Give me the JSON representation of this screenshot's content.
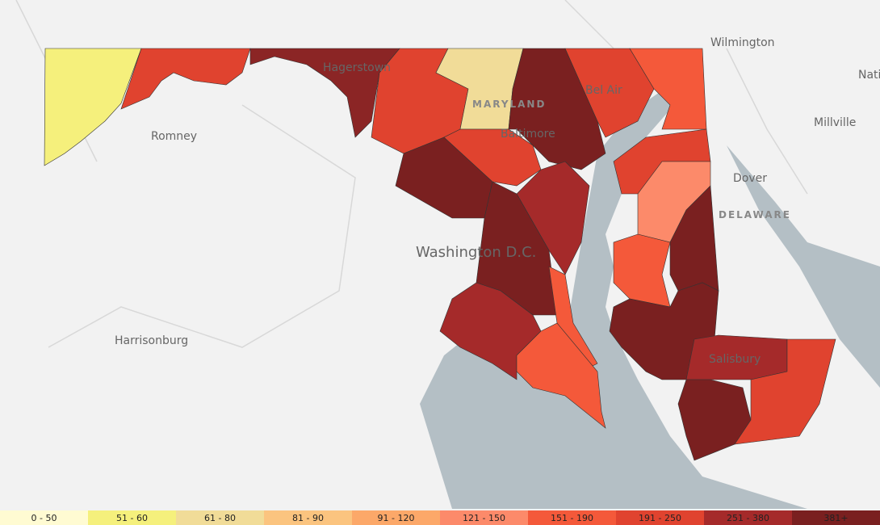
{
  "places": [
    "Wilmington",
    "Romney",
    "Hagerstown",
    "Bel Air",
    "MARYLAND",
    "Baltimore",
    "Millville",
    "Dover",
    "DELAWARE",
    "Washington D.C.",
    "Harrisonburg",
    "Salisbury",
    "Nati"
  ],
  "legend": [
    {
      "label": "0 - 50",
      "color": "#fffbd2"
    },
    {
      "label": "51 - 60",
      "color": "#f5f07c"
    },
    {
      "label": "61 - 80",
      "color": "#f1dc98"
    },
    {
      "label": "81 - 90",
      "color": "#fbc47f"
    },
    {
      "label": "91 - 120",
      "color": "#fca869"
    },
    {
      "label": "121 - 150",
      "color": "#fc8a6a"
    },
    {
      "label": "151 - 190",
      "color": "#f4593a"
    },
    {
      "label": "191 - 250",
      "color": "#e0432f"
    },
    {
      "label": "251 - 380",
      "color": "#a52a2a"
    },
    {
      "label": "381+",
      "color": "#7a2020"
    }
  ]
}
